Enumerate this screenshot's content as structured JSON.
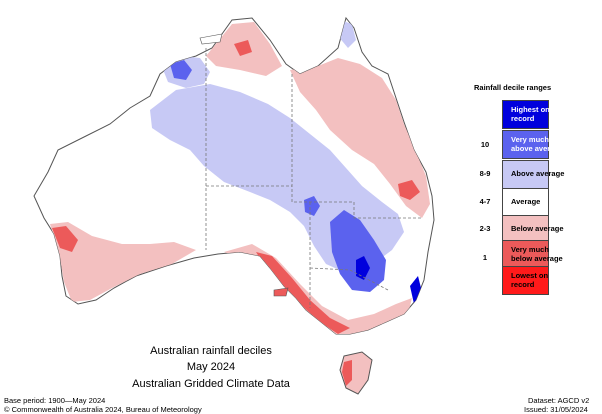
{
  "map": {
    "title_line1": "Australian rainfall deciles",
    "title_line2": "May 2024",
    "title_line3": "Australian Gridded Climate Data"
  },
  "footer": {
    "base_period": "Base period: 1900—May 2024",
    "copyright": "© Commonwealth of Australia 2024, Bureau of Meteorology",
    "dataset": "Dataset: AGCD v2",
    "issued": "Issued: 31/05/2024"
  },
  "legend": {
    "title": "Rainfall decile ranges",
    "items": [
      {
        "decile": "",
        "label": "Highest on record",
        "color": "#0000dd"
      },
      {
        "decile": "10",
        "label": "Very much above average",
        "color": "#5b62ee"
      },
      {
        "decile": "8-9",
        "label": "Above average",
        "color": "#c7c9f5"
      },
      {
        "decile": "4-7",
        "label": "Average",
        "color": "#ffffff"
      },
      {
        "decile": "2-3",
        "label": "Below average",
        "color": "#f3c0c0"
      },
      {
        "decile": "1",
        "label": "Very much below average",
        "color": "#ec5a5a"
      },
      {
        "decile": "",
        "label": "Lowest on record",
        "color": "#ff1a1a"
      }
    ]
  }
}
